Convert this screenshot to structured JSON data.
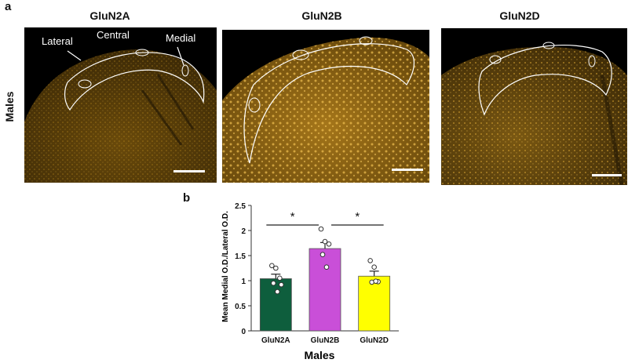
{
  "figure": {
    "panel_a_letter": "a",
    "panel_b_letter": "b",
    "row_label": "Males",
    "panel_titles": [
      "GluN2A",
      "GluN2B",
      "GluN2D"
    ],
    "region_labels": [
      "Lateral",
      "Central",
      "Medial"
    ],
    "tissue_color": "#c9951e"
  },
  "chart_data": {
    "type": "bar",
    "categories": [
      "GluN2A",
      "GluN2B",
      "GluN2D"
    ],
    "values": [
      1.04,
      1.64,
      1.09
    ],
    "errors": [
      0.09,
      0.12,
      0.1
    ],
    "points": [
      [
        1.3,
        1.25,
        1.05,
        0.95,
        0.78,
        0.92
      ],
      [
        2.03,
        1.78,
        1.73,
        1.52,
        1.27
      ],
      [
        1.4,
        1.27,
        0.98,
        0.97,
        0.99
      ]
    ],
    "colors": [
      "#0e5e3d",
      "#c94fd8",
      "#ffff00"
    ],
    "ylabel": "Mean Medial O.D./Lateral  O.D.",
    "xlabel": "Males",
    "ylim": [
      0,
      2.5
    ],
    "yticks": [
      "0",
      "0.5",
      "1",
      "1.5",
      "2",
      "2.5"
    ],
    "significance": [
      {
        "from": 0,
        "to": 1,
        "label": "*"
      },
      {
        "from": 1,
        "to": 2,
        "label": "*"
      }
    ]
  }
}
